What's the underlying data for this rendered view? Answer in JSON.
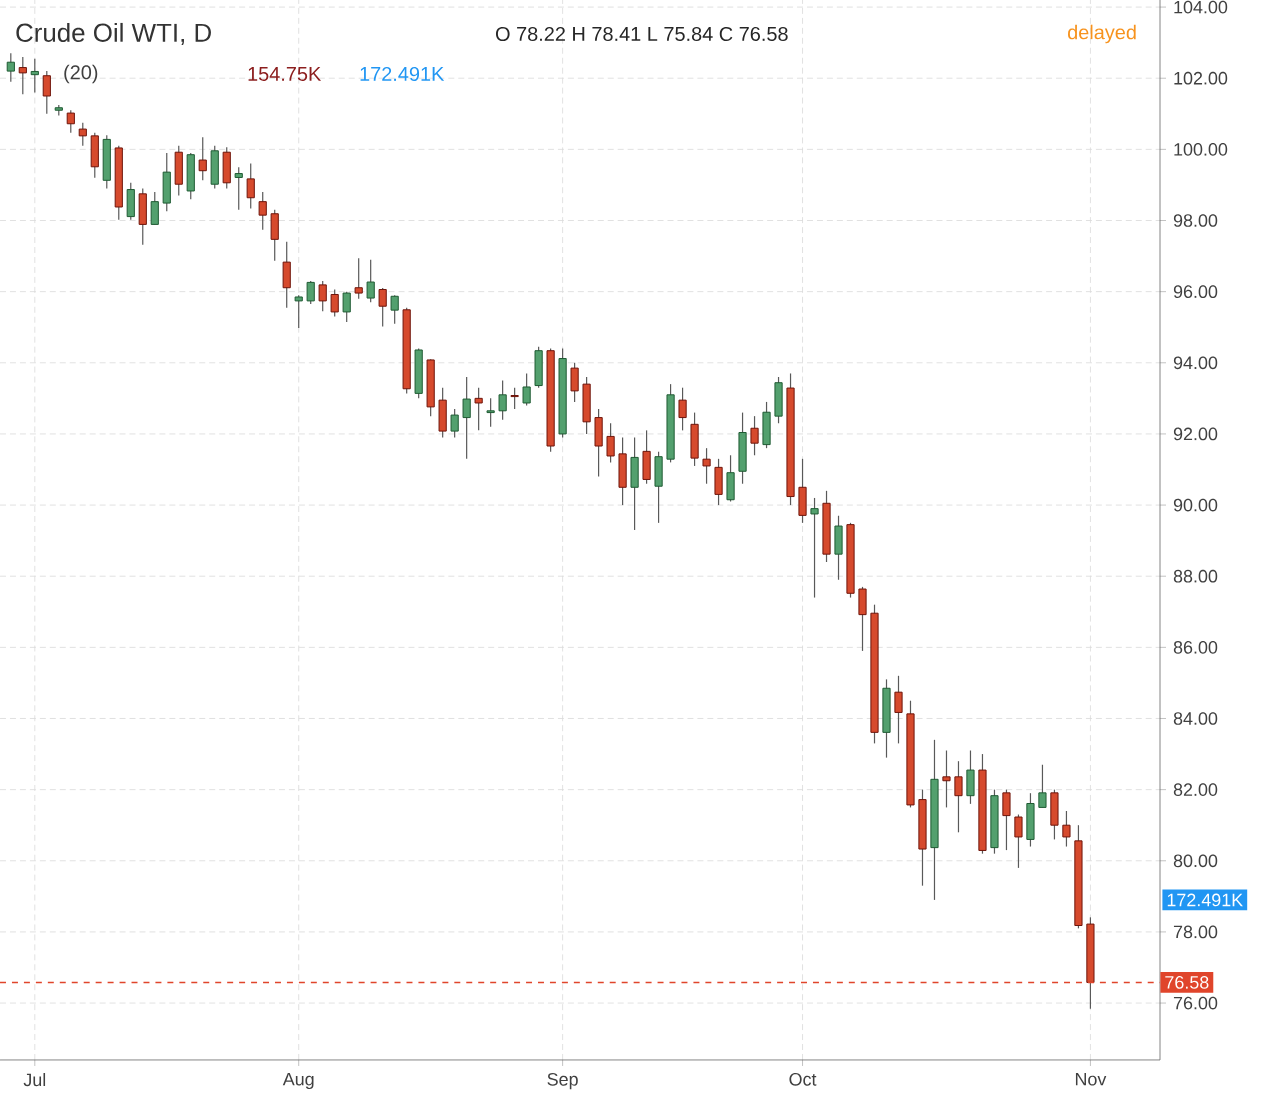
{
  "chart_data": {
    "type": "candlestick",
    "title": "Crude Oil WTI, D",
    "categories": [
      null,
      null,
      "Jul",
      null,
      null,
      null,
      null,
      null,
      null,
      null,
      null,
      null,
      null,
      null,
      null,
      null,
      null,
      null,
      null,
      null,
      null,
      null,
      null,
      null,
      "Aug",
      null,
      null,
      null,
      null,
      null,
      null,
      null,
      null,
      null,
      null,
      null,
      null,
      null,
      null,
      null,
      null,
      null,
      null,
      null,
      null,
      null,
      "Sep",
      null,
      null,
      null,
      null,
      null,
      null,
      null,
      null,
      null,
      null,
      null,
      null,
      null,
      null,
      null,
      null,
      null,
      null,
      null,
      "Oct",
      null,
      null,
      null,
      null,
      null,
      null,
      null,
      null,
      null,
      null,
      null,
      null,
      null,
      null,
      null,
      null,
      null,
      null,
      null,
      null,
      null,
      null,
      null,
      "Nov"
    ],
    "ohlc": [
      [
        102.2,
        102.7,
        101.9,
        102.45
      ],
      [
        102.3,
        102.6,
        101.55,
        102.15
      ],
      [
        102.1,
        102.55,
        101.6,
        102.19
      ],
      [
        102.07,
        102.2,
        101.0,
        101.5
      ],
      [
        101.1,
        101.25,
        100.95,
        101.17
      ],
      [
        101.02,
        101.1,
        100.47,
        100.72
      ],
      [
        100.57,
        100.75,
        100.1,
        100.38
      ],
      [
        100.38,
        100.47,
        99.2,
        99.51
      ],
      [
        99.13,
        100.4,
        98.9,
        100.28
      ],
      [
        100.04,
        100.1,
        98.02,
        98.38
      ],
      [
        98.11,
        99.06,
        98.02,
        98.87
      ],
      [
        98.75,
        98.9,
        97.32,
        97.89
      ],
      [
        97.89,
        98.8,
        97.89,
        98.53
      ],
      [
        98.49,
        99.9,
        98.26,
        99.36
      ],
      [
        99.92,
        100.1,
        98.7,
        99.02
      ],
      [
        98.83,
        99.9,
        98.6,
        99.85
      ],
      [
        99.7,
        100.34,
        99.13,
        99.4
      ],
      [
        99.02,
        100.1,
        98.9,
        99.96
      ],
      [
        99.92,
        100.06,
        98.9,
        99.06
      ],
      [
        99.21,
        99.5,
        98.3,
        99.32
      ],
      [
        99.17,
        99.6,
        98.34,
        98.64
      ],
      [
        98.53,
        98.8,
        97.74,
        98.15
      ],
      [
        98.19,
        98.3,
        96.87,
        97.47
      ],
      [
        96.83,
        97.4,
        95.55,
        96.11
      ],
      [
        95.74,
        95.9,
        94.98,
        95.85
      ],
      [
        95.74,
        96.3,
        95.65,
        96.26
      ],
      [
        96.19,
        96.3,
        95.45,
        95.74
      ],
      [
        95.92,
        96.06,
        95.3,
        95.43
      ],
      [
        95.43,
        96.0,
        95.15,
        95.96
      ],
      [
        96.11,
        96.94,
        95.8,
        95.96
      ],
      [
        95.82,
        96.9,
        95.7,
        96.27
      ],
      [
        96.06,
        96.1,
        95.02,
        95.59
      ],
      [
        95.48,
        95.9,
        95.1,
        95.87
      ],
      [
        95.49,
        95.55,
        93.14,
        93.27
      ],
      [
        93.14,
        94.4,
        93.0,
        94.36
      ],
      [
        94.08,
        94.1,
        92.5,
        92.76
      ],
      [
        92.95,
        93.3,
        91.9,
        92.08
      ],
      [
        92.08,
        92.7,
        91.9,
        92.53
      ],
      [
        92.46,
        93.6,
        91.3,
        92.98
      ],
      [
        93.0,
        93.3,
        92.1,
        92.87
      ],
      [
        92.6,
        93.0,
        92.2,
        92.65
      ],
      [
        92.65,
        93.5,
        92.4,
        93.1
      ],
      [
        93.08,
        93.3,
        92.7,
        93.05
      ],
      [
        92.87,
        93.7,
        92.8,
        93.32
      ],
      [
        93.36,
        94.45,
        93.3,
        94.34
      ],
      [
        94.34,
        94.4,
        91.5,
        91.66
      ],
      [
        92.0,
        94.4,
        91.9,
        94.12
      ],
      [
        93.85,
        94.0,
        92.9,
        93.21
      ],
      [
        93.4,
        93.6,
        92.0,
        92.34
      ],
      [
        92.46,
        92.7,
        90.8,
        91.66
      ],
      [
        91.93,
        92.3,
        91.2,
        91.38
      ],
      [
        91.44,
        91.9,
        90.0,
        90.5
      ],
      [
        90.5,
        91.9,
        89.3,
        91.34
      ],
      [
        91.51,
        92.1,
        90.6,
        90.72
      ],
      [
        90.53,
        91.5,
        89.5,
        91.36
      ],
      [
        91.29,
        93.4,
        91.2,
        93.1
      ],
      [
        92.95,
        93.3,
        92.1,
        92.46
      ],
      [
        92.27,
        92.6,
        91.1,
        91.32
      ],
      [
        91.29,
        91.6,
        90.6,
        91.1
      ],
      [
        91.06,
        91.3,
        90.0,
        90.3
      ],
      [
        90.15,
        91.4,
        90.1,
        90.91
      ],
      [
        90.95,
        92.6,
        90.6,
        92.04
      ],
      [
        92.16,
        92.5,
        91.4,
        91.74
      ],
      [
        91.7,
        92.9,
        91.6,
        92.61
      ],
      [
        92.5,
        93.6,
        92.3,
        93.44
      ],
      [
        93.29,
        93.7,
        90.0,
        90.24
      ],
      [
        90.5,
        91.3,
        89.5,
        89.71
      ],
      [
        89.75,
        90.2,
        87.4,
        89.9
      ],
      [
        90.05,
        90.4,
        88.4,
        88.62
      ],
      [
        88.62,
        89.7,
        87.9,
        89.41
      ],
      [
        89.45,
        89.5,
        87.4,
        87.52
      ],
      [
        87.64,
        87.7,
        85.9,
        86.92
      ],
      [
        86.96,
        87.2,
        83.3,
        83.61
      ],
      [
        83.61,
        85.1,
        82.9,
        84.85
      ],
      [
        84.74,
        85.2,
        83.3,
        84.17
      ],
      [
        84.13,
        84.5,
        81.5,
        81.57
      ],
      [
        81.72,
        82.0,
        79.3,
        80.33
      ],
      [
        80.37,
        83.4,
        78.9,
        82.29
      ],
      [
        82.36,
        83.1,
        81.5,
        82.25
      ],
      [
        82.36,
        82.8,
        80.8,
        81.83
      ],
      [
        81.83,
        83.1,
        81.6,
        82.55
      ],
      [
        82.55,
        83.0,
        80.2,
        80.29
      ],
      [
        80.37,
        82.0,
        80.2,
        81.83
      ],
      [
        81.91,
        82.0,
        80.3,
        81.27
      ],
      [
        81.23,
        81.3,
        79.8,
        80.67
      ],
      [
        80.6,
        81.9,
        80.4,
        81.61
      ],
      [
        81.5,
        82.7,
        81.5,
        81.91
      ],
      [
        81.91,
        82.0,
        80.6,
        81.0
      ],
      [
        81.0,
        81.4,
        80.4,
        80.67
      ],
      [
        80.56,
        81.0,
        78.1,
        78.18
      ],
      [
        78.22,
        78.41,
        75.84,
        76.58
      ]
    ],
    "ylim": [
      74.4,
      104.2
    ],
    "yticks": [
      {
        "value": 76,
        "label": "76.00"
      },
      {
        "value": 78,
        "label": "78.00"
      },
      {
        "value": 80,
        "label": "80.00"
      },
      {
        "value": 82,
        "label": "82.00"
      },
      {
        "value": 84,
        "label": "84.00"
      },
      {
        "value": 86,
        "label": "86.00"
      },
      {
        "value": 88,
        "label": "88.00"
      },
      {
        "value": 90,
        "label": "90.00"
      },
      {
        "value": 92,
        "label": "92.00"
      },
      {
        "value": 94,
        "label": "94.00"
      },
      {
        "value": 96,
        "label": "96.00"
      },
      {
        "value": 98,
        "label": "98.00"
      },
      {
        "value": 100,
        "label": "100.00"
      },
      {
        "value": 102,
        "label": "102.00"
      },
      {
        "value": 104,
        "label": "104.00"
      }
    ],
    "grid": true,
    "ref_lines": [
      {
        "axis": "y",
        "value": 76.58,
        "label": "76.58",
        "color": "#e0452b",
        "line_style": "dashed"
      }
    ],
    "annotations": [
      "O 78.22 H 78.41 L 75.84 C 76.58",
      "delayed",
      "(20)",
      "154.75K",
      "172.491K",
      "172.491K"
    ]
  }
}
